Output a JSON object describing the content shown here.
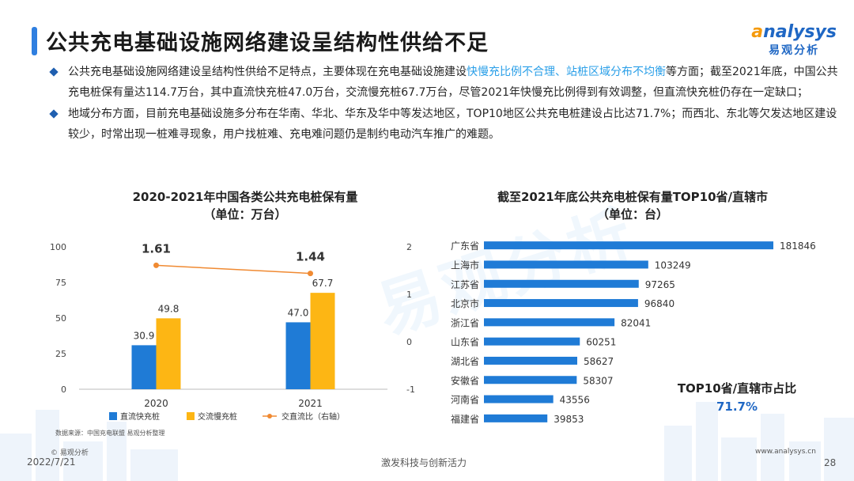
{
  "header": {
    "title": "公共充电基础设施网络建设呈结构性供给不足",
    "logo_en_initial": "a",
    "logo_en_rest": "nalysys",
    "logo_cn": "易观分析"
  },
  "bullets": [
    {
      "pre": "公共充电基础设施网络建设呈结构性供给不足特点，主要体现在充电基础设施建设",
      "highlight": "快慢充比例不合理、站桩区域分布不均衡",
      "post": "等方面；截至2021年底，中国公共充电桩保有量达114.7万台，其中直流快充桩47.0万台，交流慢充桩67.7万台，尽管2021年快慢充比例得到有效调整，但直流快充桩仍存在一定缺口；"
    },
    {
      "pre": "地域分布方面，目前充电基础设施多分布在华南、华北、华东及华中等发达地区，TOP10地区公共充电桩建设占比达71.7%；而西北、东北等欠发达地区建设较少，时常出现一桩难寻现象，用户找桩难、充电难问题仍是制约电动汽车推广的难题。",
      "highlight": "",
      "post": ""
    }
  ],
  "chart_left": {
    "title_line1": "2020-2021年中国各类公共充电桩保有量",
    "title_line2": "（单位：万台）",
    "source": "数据来源：中国充电联盟 易观分析整理"
  },
  "chart_right": {
    "title_line1": "截至2021年底公共充电桩保有量TOP10省/直辖市",
    "title_line2": "（单位：台）",
    "share_label": "TOP10省/直辖市占比",
    "share_value": "71.7%"
  },
  "chart_data": [
    {
      "type": "bar",
      "categories": [
        "2020",
        "2021"
      ],
      "series": [
        {
          "name": "直流快充桩",
          "values": [
            30.9,
            47.0
          ],
          "labels": [
            "30.9",
            "47.0"
          ],
          "color": "#1f7bd6"
        },
        {
          "name": "交流慢充桩",
          "values": [
            49.8,
            67.7
          ],
          "labels": [
            "49.8",
            "67.7"
          ],
          "color": "#fdb614"
        },
        {
          "name": "交直流比（右轴）",
          "type": "line",
          "axis": "right",
          "values": [
            1.61,
            1.44
          ],
          "labels": [
            "1.61",
            "1.44"
          ],
          "color": "#f08a32"
        }
      ],
      "ylim": [
        0,
        100
      ],
      "yticks": [
        "0",
        "25",
        "50",
        "75",
        "100"
      ],
      "y2lim": [
        -1,
        2
      ],
      "y2ticks": [
        "-1",
        "0",
        "1",
        "2"
      ]
    },
    {
      "type": "bar",
      "orientation": "horizontal",
      "categories": [
        "广东省",
        "上海市",
        "江苏省",
        "北京市",
        "浙江省",
        "山东省",
        "湖北省",
        "安徽省",
        "河南省",
        "福建省"
      ],
      "values": [
        181846,
        103249,
        97265,
        96840,
        82041,
        60251,
        58627,
        58307,
        43556,
        39853
      ],
      "color": "#1f7bd6",
      "xlim": [
        0,
        181846
      ]
    }
  ],
  "footer": {
    "copyright": "© 易观分析",
    "date": "2022/7/21",
    "slogan": "激发科技与创新活力",
    "website": "www.analysys.cn",
    "page": "28"
  },
  "watermark": "易观分析",
  "colors": {
    "accent": "#2f7fe0",
    "highlight": "#2a9fe8",
    "bar_blue": "#1f7bd6",
    "bar_yellow": "#fdb614",
    "line_orange": "#f08a32"
  }
}
